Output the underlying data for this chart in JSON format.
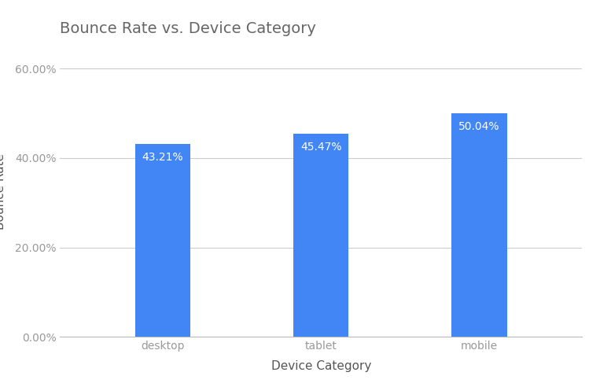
{
  "title": "Bounce Rate vs. Device Category",
  "categories": [
    "desktop",
    "tablet",
    "mobile"
  ],
  "values": [
    0.4321,
    0.4547,
    0.5004
  ],
  "labels": [
    "43.21%",
    "45.47%",
    "50.04%"
  ],
  "bar_color": "#4285F4",
  "xlabel": "Device Category",
  "ylabel": "Bounce Rate",
  "ylim": [
    0,
    0.65
  ],
  "yticks": [
    0.0,
    0.2,
    0.4,
    0.6
  ],
  "ytick_labels": [
    "0.00%",
    "20.00%",
    "40.00%",
    "60.00%"
  ],
  "background_color": "#ffffff",
  "grid_color": "#cccccc",
  "title_fontsize": 14,
  "axis_label_fontsize": 11,
  "tick_fontsize": 10,
  "bar_label_fontsize": 10,
  "title_color": "#666666",
  "axis_label_color": "#555555",
  "tick_color": "#999999",
  "bar_width": 0.35
}
